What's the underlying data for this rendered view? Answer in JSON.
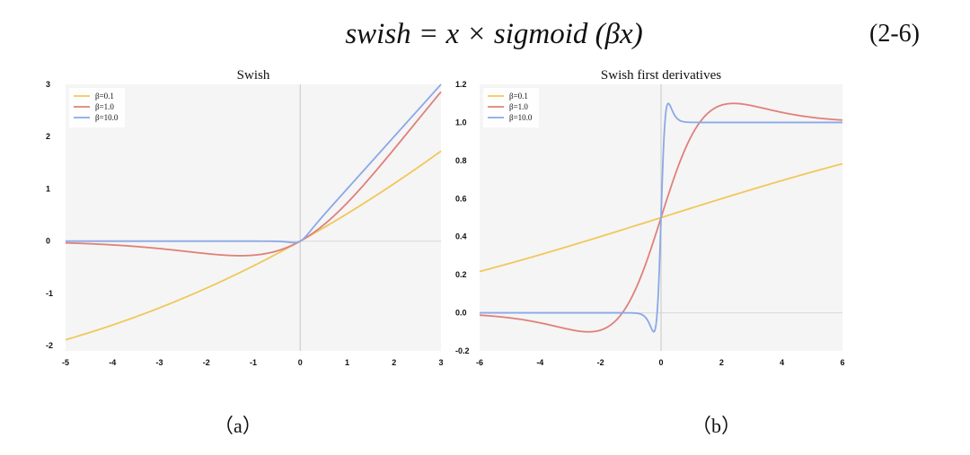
{
  "equation": {
    "text": "swish = x × sigmoid (βx)",
    "number": "(2-6)"
  },
  "captions": {
    "a": "（a）",
    "b": "（b）"
  },
  "chart_data": [
    {
      "type": "line",
      "title": "Swish",
      "xlabel": "",
      "ylabel": "",
      "xlim": [
        -5,
        3
      ],
      "ylim": [
        -2.1,
        3
      ],
      "xticks": [
        -5,
        -4,
        -3,
        -2,
        -1,
        0,
        1,
        2,
        3
      ],
      "yticks": [
        -2,
        -1,
        0,
        1,
        2,
        3
      ],
      "grid": false,
      "legend_position": "top-left",
      "background": "#f5f5f5",
      "series": [
        {
          "name": "β=0.1",
          "color": "#f0c85a",
          "beta": 0.1,
          "x": [
            -5,
            -4,
            -3,
            -2,
            -1,
            0,
            1,
            2,
            3
          ],
          "y": [
            -1.88,
            -1.6,
            -1.28,
            -0.9,
            -0.48,
            0,
            0.52,
            1.1,
            1.72
          ]
        },
        {
          "name": "β=1.0",
          "color": "#e0807a",
          "beta": 1.0,
          "x": [
            -5,
            -4,
            -3,
            -2,
            -1.28,
            -1,
            0,
            1,
            2,
            3
          ],
          "y": [
            -0.03,
            -0.07,
            -0.14,
            -0.24,
            -0.28,
            -0.27,
            0,
            0.73,
            1.76,
            2.86
          ]
        },
        {
          "name": "β=10.0",
          "color": "#8aa8e8",
          "beta": 10.0,
          "x": [
            -5,
            -1,
            -0.3,
            0,
            0.3,
            1,
            2,
            3
          ],
          "y": [
            0,
            0,
            -0.01,
            0,
            0.29,
            1.0,
            2.0,
            3.0
          ]
        }
      ]
    },
    {
      "type": "line",
      "title": "Swish first derivatives",
      "xlabel": "",
      "ylabel": "",
      "xlim": [
        -6,
        6
      ],
      "ylim": [
        -0.2,
        1.2
      ],
      "xticks": [
        -6,
        -4,
        -2,
        0,
        2,
        4,
        6
      ],
      "yticks": [
        -0.2,
        0.0,
        0.2,
        0.4,
        0.6,
        0.8,
        1.0,
        1.2
      ],
      "ytick_labels": [
        "-0.2",
        "0.0",
        "0.2",
        "0.4",
        "0.6",
        "0.8",
        "1.0",
        "1.2"
      ],
      "grid": false,
      "legend_position": "top-left",
      "background": "#f5f5f5",
      "series": [
        {
          "name": "β=0.1",
          "color": "#f0c85a",
          "beta": 0.1,
          "x": [
            -6,
            -4,
            -2,
            0,
            2,
            4,
            6
          ],
          "y": [
            0.2,
            0.3,
            0.4,
            0.5,
            0.6,
            0.7,
            0.8
          ]
        },
        {
          "name": "β=1.0",
          "color": "#e0807a",
          "beta": 1.0,
          "x": [
            -6,
            -4,
            -2.4,
            -1,
            0,
            1,
            2.4,
            4,
            6
          ],
          "y": [
            -0.01,
            -0.05,
            -0.1,
            0.07,
            0.5,
            0.93,
            1.1,
            1.05,
            1.01
          ]
        },
        {
          "name": "β=10.0",
          "color": "#8aa8e8",
          "beta": 10.0,
          "x": [
            -6,
            -0.5,
            -0.24,
            0,
            0.24,
            0.5,
            6
          ],
          "y": [
            0,
            -0.01,
            -0.1,
            0.5,
            1.1,
            1.01,
            1.0
          ]
        }
      ]
    }
  ]
}
